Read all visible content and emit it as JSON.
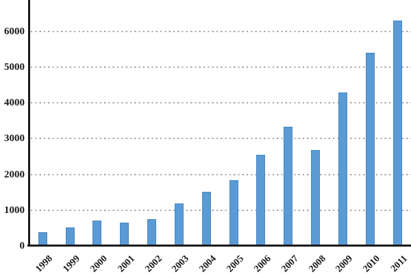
{
  "chart_data": {
    "type": "bar",
    "title": "",
    "xlabel": "",
    "ylabel": "",
    "categories": [
      "1998",
      "1999",
      "2000",
      "2001",
      "2002",
      "2003",
      "2004",
      "2005",
      "2006",
      "2007",
      "2008",
      "2009",
      "2010",
      "2011"
    ],
    "values": [
      390,
      530,
      705,
      665,
      750,
      1200,
      1520,
      1850,
      2540,
      3330,
      2690,
      4280,
      5390,
      6300
    ],
    "yticks": [
      0,
      1000,
      2000,
      3000,
      4000,
      5000,
      6000
    ],
    "ylim": [
      0,
      6870
    ],
    "grid": "horizontal-dotted",
    "legend": "none",
    "colors": {
      "bar_fill": "#5b9bd5",
      "bar_border": "#4886c4",
      "gridline": "#a6a6a6",
      "axis": "#1a1a1a",
      "background": "#ffffff",
      "label_text": "#1a1a1a"
    }
  }
}
